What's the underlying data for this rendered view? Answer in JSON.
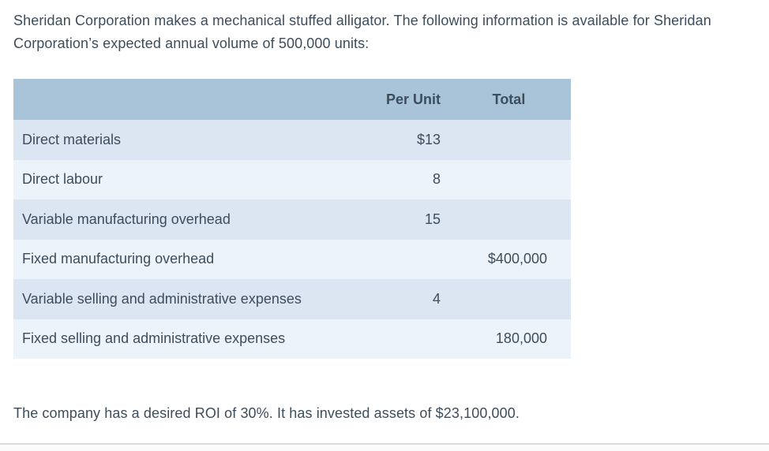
{
  "intro": "Sheridan Corporation makes a mechanical stuffed alligator. The following information is available for Sheridan Corporation’s expected annual volume of 500,000 units:",
  "cost_table": {
    "col_headers": {
      "item": "",
      "per_unit": "Per Unit",
      "total": "Total"
    },
    "rows": [
      {
        "label": "Direct materials",
        "per_unit": "$13",
        "total": ""
      },
      {
        "label": "Direct labour",
        "per_unit": "8",
        "total": ""
      },
      {
        "label": "Variable manufacturing overhead",
        "per_unit": "15",
        "total": ""
      },
      {
        "label": "Fixed manufacturing overhead",
        "per_unit": "",
        "total": "$400,000"
      },
      {
        "label": "Variable selling and administrative expenses",
        "per_unit": "4",
        "total": ""
      },
      {
        "label": "Fixed selling and administrative expenses",
        "per_unit": "",
        "total": "180,000"
      }
    ]
  },
  "closing": "The company has a desired ROI of 30%. It has invested assets of $23,100,000.",
  "colors": {
    "text": "#3d4d5c",
    "table_header_bg": "#a9c3d9",
    "row_odd_bg": "#dce6f2",
    "row_even_bg": "#edf3fb",
    "divider": "#dcdcdc"
  }
}
